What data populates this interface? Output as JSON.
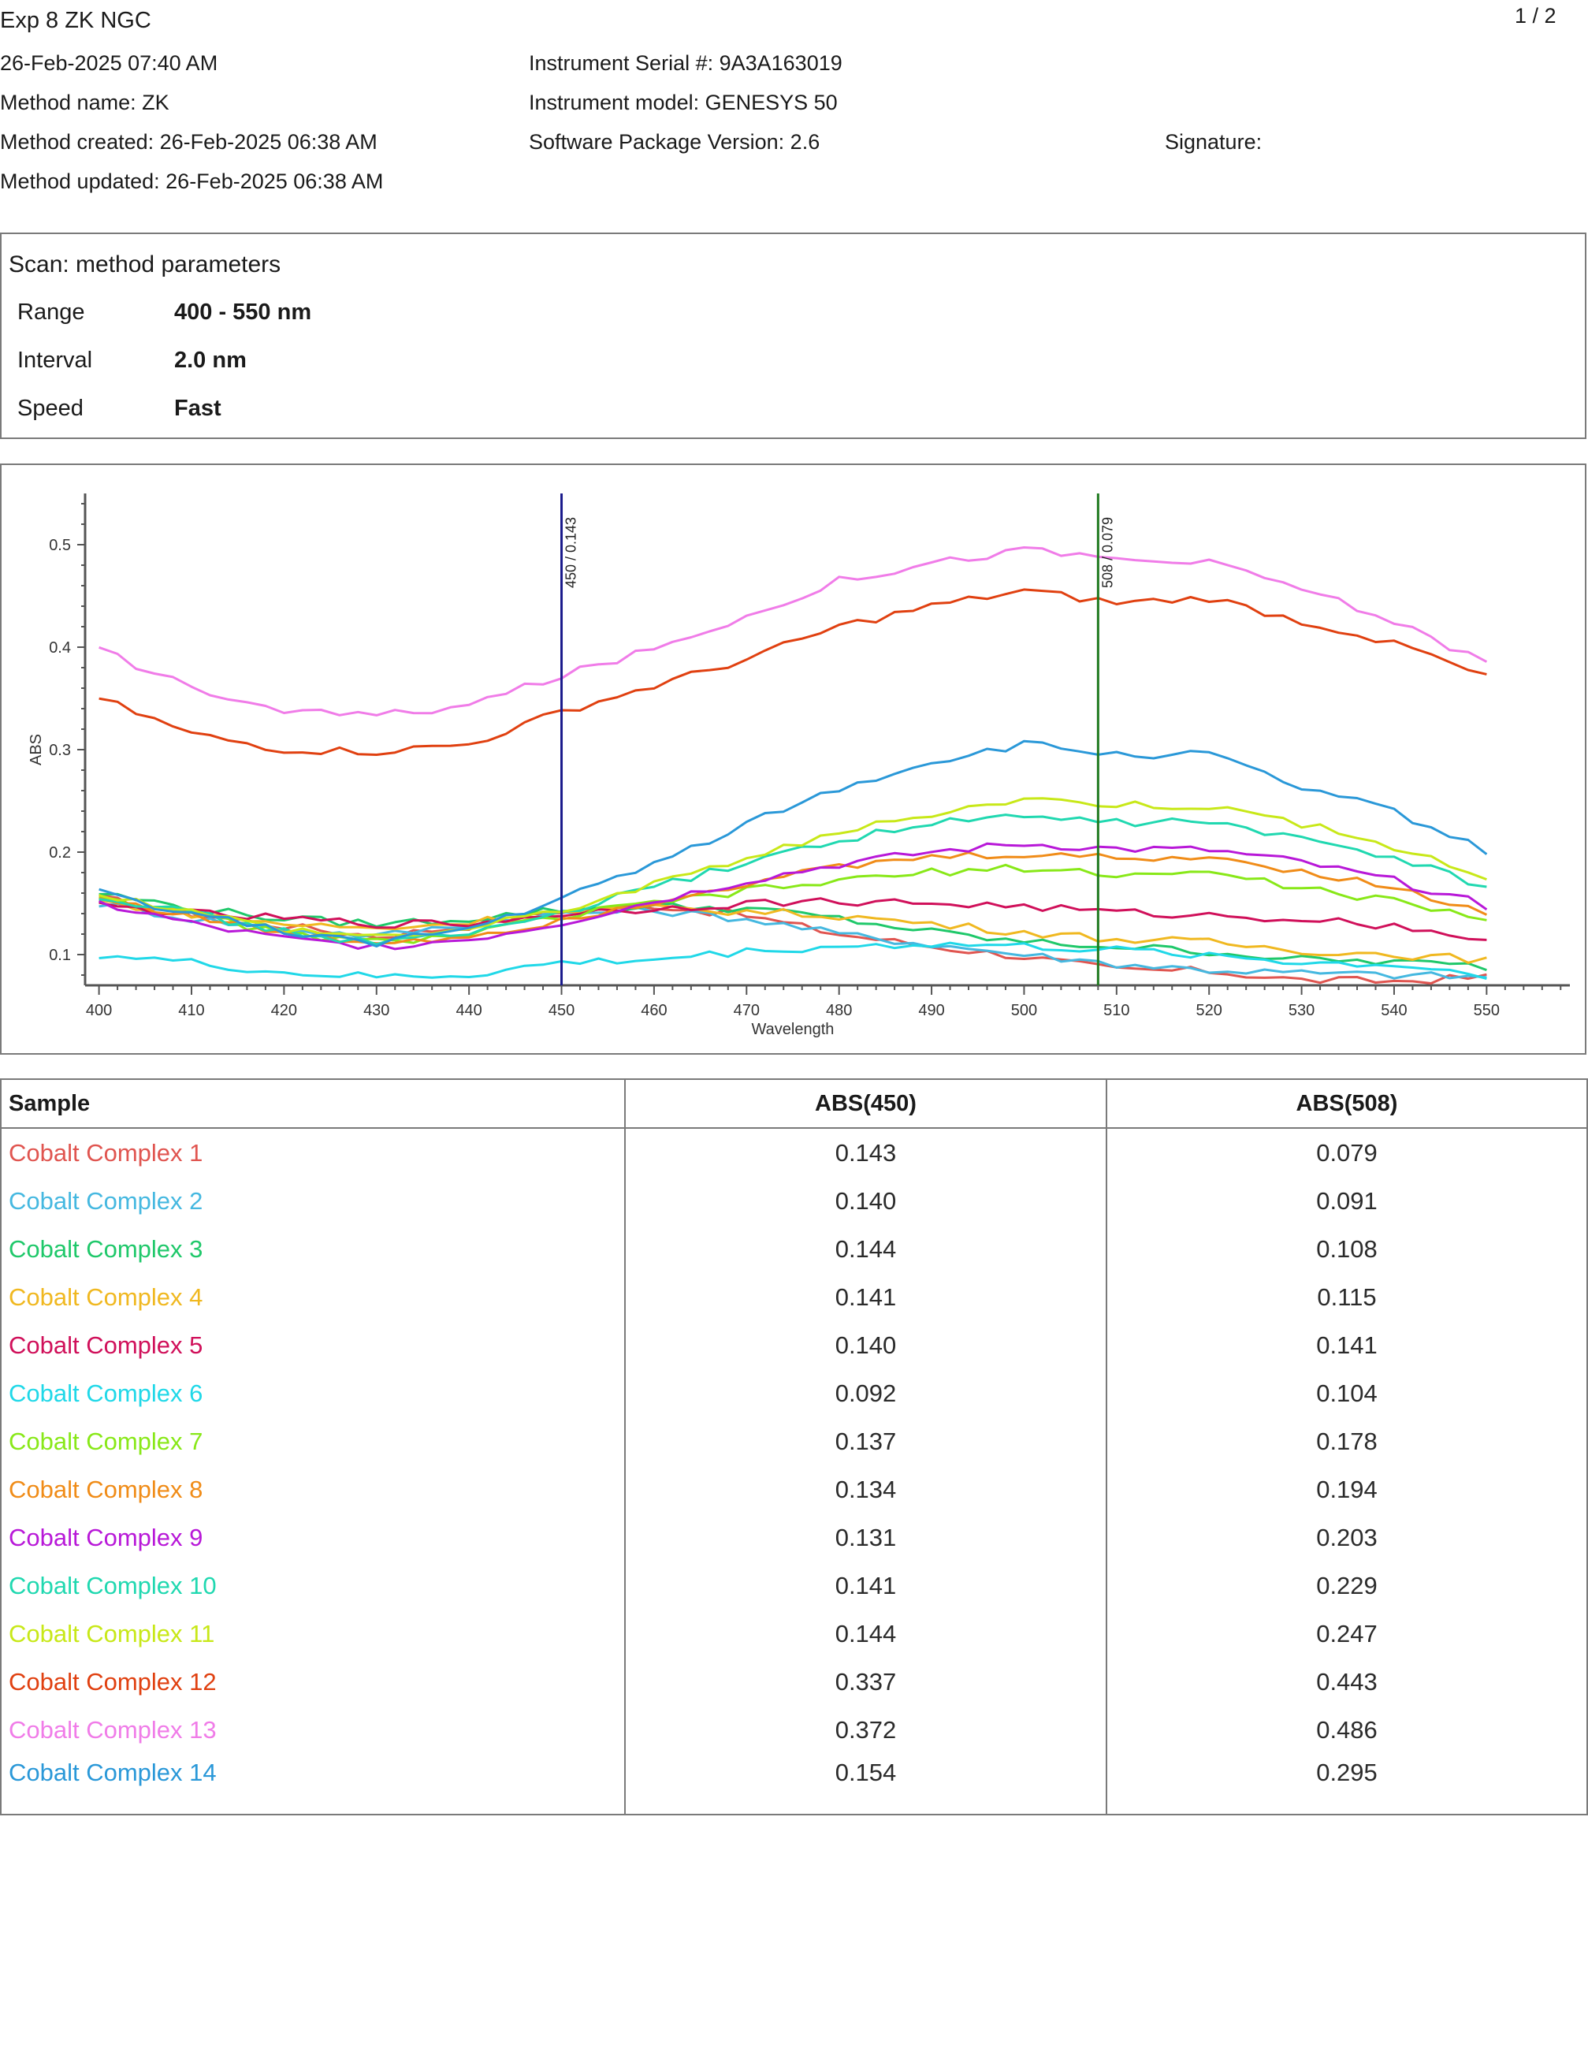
{
  "header": {
    "title": "Exp 8 ZK NGC",
    "page_indicator": "1 / 2",
    "date_time": "26-Feb-2025 07:40 AM",
    "method_name": "Method name: ZK",
    "method_created": "Method created: 26-Feb-2025 06:38 AM",
    "method_updated": "Method updated: 26-Feb-2025 06:38 AM",
    "instrument_serial": "Instrument Serial #: 9A3A163019",
    "instrument_model": "Instrument model: GENESYS 50",
    "software_version": "Software Package Version: 2.6",
    "signature": "Signature:"
  },
  "method_parameters": {
    "heading": "Scan: method parameters",
    "rows": [
      {
        "label": "Range",
        "value": "400 - 550 nm"
      },
      {
        "label": "Interval",
        "value": "2.0 nm"
      },
      {
        "label": "Speed",
        "value": "Fast"
      }
    ]
  },
  "chart_data": {
    "type": "line",
    "xlabel": "Wavelength",
    "ylabel": "ABS",
    "xlim": [
      398.5,
      559
    ],
    "ylim": [
      0.07,
      0.55
    ],
    "x_ticks": [
      400,
      410,
      420,
      430,
      440,
      450,
      460,
      470,
      480,
      490,
      500,
      510,
      520,
      530,
      540,
      550
    ],
    "y_ticks": [
      0.1,
      0.2,
      0.3,
      0.4,
      0.5
    ],
    "markers": [
      {
        "x": 450,
        "label": "450 / 0.143",
        "color": "#1a1a8c"
      },
      {
        "x": 508,
        "label": "508 / 0.079",
        "color": "#1f7a1f"
      }
    ],
    "x": [
      400,
      410,
      420,
      430,
      440,
      450,
      460,
      470,
      480,
      490,
      500,
      510,
      520,
      530,
      540,
      550
    ],
    "series": [
      {
        "name": "Cobalt Complex 1",
        "color": "#e05550",
        "values": [
          0.155,
          0.14,
          0.128,
          0.118,
          0.128,
          0.143,
          0.148,
          0.138,
          0.12,
          0.108,
          0.098,
          0.085,
          0.084,
          0.075,
          0.074,
          0.078
        ]
      },
      {
        "name": "Cobalt Complex 2",
        "color": "#45b8e0",
        "values": [
          0.15,
          0.135,
          0.125,
          0.118,
          0.13,
          0.14,
          0.143,
          0.135,
          0.12,
          0.11,
          0.1,
          0.091,
          0.085,
          0.082,
          0.08,
          0.078
        ]
      },
      {
        "name": "Cobalt Complex 3",
        "color": "#1fc86a",
        "values": [
          0.16,
          0.145,
          0.135,
          0.13,
          0.135,
          0.144,
          0.147,
          0.145,
          0.135,
          0.122,
          0.112,
          0.108,
          0.103,
          0.095,
          0.093,
          0.088
        ]
      },
      {
        "name": "Cobalt Complex 4",
        "color": "#f0b820",
        "values": [
          0.152,
          0.14,
          0.13,
          0.125,
          0.132,
          0.141,
          0.145,
          0.142,
          0.138,
          0.13,
          0.122,
          0.115,
          0.112,
          0.104,
          0.1,
          0.095
        ]
      },
      {
        "name": "Cobalt Complex 5",
        "color": "#d0105a",
        "values": [
          0.148,
          0.14,
          0.135,
          0.13,
          0.13,
          0.14,
          0.145,
          0.15,
          0.152,
          0.15,
          0.147,
          0.141,
          0.138,
          0.135,
          0.128,
          0.115
        ]
      },
      {
        "name": "Cobalt Complex 6",
        "color": "#20d8e8",
        "values": [
          0.1,
          0.092,
          0.082,
          0.078,
          0.08,
          0.092,
          0.095,
          0.103,
          0.108,
          0.11,
          0.108,
          0.104,
          0.1,
          0.092,
          0.09,
          0.08
        ]
      },
      {
        "name": "Cobalt Complex 7",
        "color": "#88e818",
        "values": [
          0.158,
          0.14,
          0.12,
          0.112,
          0.12,
          0.137,
          0.15,
          0.162,
          0.172,
          0.18,
          0.185,
          0.178,
          0.18,
          0.165,
          0.152,
          0.132
        ]
      },
      {
        "name": "Cobalt Complex 8",
        "color": "#f08c18",
        "values": [
          0.155,
          0.138,
          0.12,
          0.112,
          0.118,
          0.134,
          0.152,
          0.17,
          0.185,
          0.195,
          0.198,
          0.194,
          0.195,
          0.182,
          0.165,
          0.14
        ]
      },
      {
        "name": "Cobalt Complex 9",
        "color": "#b818d8",
        "values": [
          0.15,
          0.13,
          0.115,
          0.108,
          0.115,
          0.131,
          0.152,
          0.172,
          0.188,
          0.2,
          0.208,
          0.203,
          0.202,
          0.19,
          0.172,
          0.148
        ]
      },
      {
        "name": "Cobalt Complex 10",
        "color": "#20d8b0",
        "values": [
          0.158,
          0.14,
          0.122,
          0.112,
          0.12,
          0.141,
          0.165,
          0.19,
          0.212,
          0.228,
          0.235,
          0.229,
          0.23,
          0.212,
          0.195,
          0.165
        ]
      },
      {
        "name": "Cobalt Complex 11",
        "color": "#c8e818",
        "values": [
          0.16,
          0.142,
          0.125,
          0.118,
          0.125,
          0.144,
          0.168,
          0.195,
          0.218,
          0.238,
          0.252,
          0.247,
          0.245,
          0.228,
          0.205,
          0.175
        ]
      },
      {
        "name": "Cobalt Complex 12",
        "color": "#e04010",
        "values": [
          0.35,
          0.315,
          0.3,
          0.298,
          0.305,
          0.337,
          0.362,
          0.388,
          0.42,
          0.44,
          0.455,
          0.443,
          0.448,
          0.425,
          0.405,
          0.37
        ]
      },
      {
        "name": "Cobalt Complex 13",
        "color": "#f07ce8",
        "values": [
          0.398,
          0.36,
          0.338,
          0.333,
          0.343,
          0.372,
          0.398,
          0.43,
          0.465,
          0.482,
          0.495,
          0.486,
          0.482,
          0.458,
          0.425,
          0.385
        ]
      },
      {
        "name": "Cobalt Complex 14",
        "color": "#2a98d8",
        "values": [
          0.16,
          0.14,
          0.122,
          0.112,
          0.125,
          0.154,
          0.188,
          0.228,
          0.262,
          0.288,
          0.305,
          0.295,
          0.295,
          0.262,
          0.24,
          0.2
        ]
      }
    ]
  },
  "results_table": {
    "headers": [
      "Sample",
      "ABS(450)",
      "ABS(508)"
    ],
    "rows": [
      {
        "sample": "Cobalt Complex 1",
        "abs450": "0.143",
        "abs508": "0.079",
        "color": "#e05550"
      },
      {
        "sample": "Cobalt Complex 2",
        "abs450": "0.140",
        "abs508": "0.091",
        "color": "#45b8e0"
      },
      {
        "sample": "Cobalt Complex 3",
        "abs450": "0.144",
        "abs508": "0.108",
        "color": "#1fc86a"
      },
      {
        "sample": "Cobalt Complex 4",
        "abs450": "0.141",
        "abs508": "0.115",
        "color": "#f0b820"
      },
      {
        "sample": "Cobalt Complex 5",
        "abs450": "0.140",
        "abs508": "0.141",
        "color": "#d0105a"
      },
      {
        "sample": "Cobalt Complex 6",
        "abs450": "0.092",
        "abs508": "0.104",
        "color": "#20d8e8"
      },
      {
        "sample": "Cobalt Complex 7",
        "abs450": "0.137",
        "abs508": "0.178",
        "color": "#88e818"
      },
      {
        "sample": "Cobalt Complex 8",
        "abs450": "0.134",
        "abs508": "0.194",
        "color": "#f08c18"
      },
      {
        "sample": "Cobalt Complex 9",
        "abs450": "0.131",
        "abs508": "0.203",
        "color": "#b818d8"
      },
      {
        "sample": "Cobalt Complex 10",
        "abs450": "0.141",
        "abs508": "0.229",
        "color": "#20d8b0"
      },
      {
        "sample": "Cobalt Complex 11",
        "abs450": "0.144",
        "abs508": "0.247",
        "color": "#c8e818"
      },
      {
        "sample": "Cobalt Complex 12",
        "abs450": "0.337",
        "abs508": "0.443",
        "color": "#e04010"
      },
      {
        "sample": "Cobalt Complex 13",
        "abs450": "0.372",
        "abs508": "0.486",
        "color": "#f07ce8"
      },
      {
        "sample": "Cobalt Complex 14",
        "abs450": "0.154",
        "abs508": "0.295",
        "color": "#2a98d8"
      }
    ]
  }
}
